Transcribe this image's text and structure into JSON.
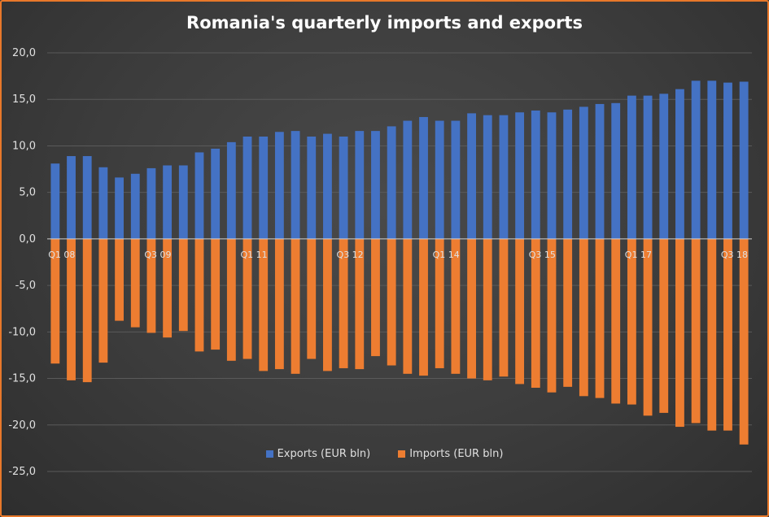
{
  "chart_data": {
    "type": "bar",
    "title": "Romania's quarterly imports and exports",
    "ylim": [
      -25,
      20
    ],
    "yticks": [
      "20,0",
      "15,0",
      "10,0",
      "5,0",
      "0,0",
      "-5,0",
      "-10,0",
      "-15,0",
      "-20,0",
      "-25,0"
    ],
    "ytick_values": [
      20,
      15,
      10,
      5,
      0,
      -5,
      -10,
      -15,
      -20,
      -25
    ],
    "x_tick_labels": [
      {
        "index": 0,
        "label": "Q1 08"
      },
      {
        "index": 6,
        "label": "Q3 09"
      },
      {
        "index": 12,
        "label": "Q1 11"
      },
      {
        "index": 18,
        "label": "Q3 12"
      },
      {
        "index": 24,
        "label": "Q1 14"
      },
      {
        "index": 30,
        "label": "Q3 15"
      },
      {
        "index": 36,
        "label": "Q1 17"
      },
      {
        "index": 42,
        "label": "Q3 18"
      }
    ],
    "categories": [
      "Q1 08",
      "Q2 08",
      "Q3 08",
      "Q4 08",
      "Q1 09",
      "Q2 09",
      "Q3 09",
      "Q4 09",
      "Q1 10",
      "Q2 10",
      "Q3 10",
      "Q4 10",
      "Q1 11",
      "Q2 11",
      "Q3 11",
      "Q4 11",
      "Q1 12",
      "Q2 12",
      "Q3 12",
      "Q4 12",
      "Q1 13",
      "Q2 13",
      "Q3 13",
      "Q4 13",
      "Q1 14",
      "Q2 14",
      "Q3 14",
      "Q4 14",
      "Q1 15",
      "Q2 15",
      "Q3 15",
      "Q4 15",
      "Q1 16",
      "Q2 16",
      "Q3 16",
      "Q4 16",
      "Q1 17",
      "Q2 17",
      "Q3 17",
      "Q4 17",
      "Q1 18",
      "Q2 18",
      "Q3 18",
      "Q4 18"
    ],
    "series": [
      {
        "name": "Exports (EUR bln)",
        "color": "#4472c4",
        "values": [
          8.1,
          8.9,
          8.9,
          7.7,
          6.6,
          7.0,
          7.6,
          7.9,
          7.9,
          9.3,
          9.7,
          10.4,
          11.0,
          11.0,
          11.5,
          11.6,
          11.0,
          11.3,
          11.0,
          11.6,
          11.6,
          12.1,
          12.7,
          13.1,
          12.7,
          12.7,
          13.5,
          13.3,
          13.3,
          13.6,
          13.8,
          13.6,
          13.9,
          14.2,
          14.5,
          14.6,
          15.4,
          15.4,
          15.6,
          16.1,
          17.0,
          17.0,
          16.8,
          16.9
        ]
      },
      {
        "name": "Imports (EUR bln)",
        "color": "#ed7d31",
        "values": [
          -13.4,
          -15.2,
          -15.4,
          -13.3,
          -8.8,
          -9.5,
          -10.1,
          -10.6,
          -9.9,
          -12.1,
          -11.9,
          -13.1,
          -12.9,
          -14.2,
          -14.0,
          -14.5,
          -12.9,
          -14.2,
          -13.9,
          -14.0,
          -12.6,
          -13.6,
          -14.5,
          -14.7,
          -13.9,
          -14.5,
          -15.0,
          -15.2,
          -14.8,
          -15.6,
          -16.0,
          -16.5,
          -15.9,
          -16.9,
          -17.1,
          -17.7,
          -17.8,
          -19.0,
          -18.7,
          -20.2,
          -19.8,
          -20.6,
          -20.6,
          -22.1
        ]
      }
    ],
    "grid": true,
    "legend": "bottom"
  }
}
